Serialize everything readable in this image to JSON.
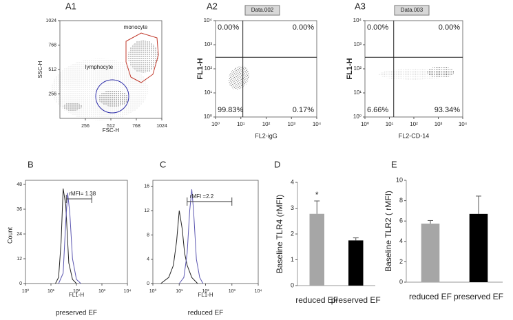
{
  "chart_data": [
    {
      "type": "scatter",
      "panel": "A1",
      "xlabel": "FSC-H",
      "ylabel": "SSC-H",
      "xlim": [
        0,
        1024
      ],
      "ylim": [
        0,
        1024
      ],
      "xticks": [
        256,
        512,
        768,
        1024
      ],
      "yticks": [
        256,
        512,
        768,
        1024
      ],
      "annotations": [
        "monocyte",
        "lymphocyte"
      ]
    },
    {
      "type": "scatter",
      "panel": "A2",
      "tag": "Data.002",
      "xlabel": "FL2-igG",
      "ylabel": "FL1-H",
      "xscale": "log",
      "yscale": "log",
      "xlim": [
        1,
        10000
      ],
      "ylim": [
        1,
        10000
      ],
      "xticks": [
        {
          "value": 1,
          "label": "10⁰"
        },
        {
          "value": 10,
          "label": "10¹"
        },
        {
          "value": 100,
          "label": "10²"
        },
        {
          "value": 1000,
          "label": "10³"
        },
        {
          "value": 10000,
          "label": "10⁴"
        }
      ],
      "yticks": [
        {
          "value": 1,
          "label": "10⁰"
        },
        {
          "value": 10,
          "label": "10¹"
        },
        {
          "value": 100,
          "label": "10²"
        },
        {
          "value": 1000,
          "label": "10³"
        },
        {
          "value": 10000,
          "label": "10⁴"
        }
      ],
      "gate": [
        12,
        300
      ],
      "quadrants": {
        "values": [
          0.0,
          0.0,
          99.83,
          0.17
        ],
        "value_labels": [
          "0.00%",
          "0.00%",
          "99.83%",
          "0.17%"
        ]
      }
    },
    {
      "type": "scatter",
      "panel": "A3",
      "tag": "Data.003",
      "xlabel": "FL2-CD-14",
      "ylabel": "FL1-H",
      "xscale": "log",
      "yscale": "log",
      "xlim": [
        1,
        10000
      ],
      "ylim": [
        1,
        10000
      ],
      "xticks": [
        {
          "value": 1,
          "label": "10⁰"
        },
        {
          "value": 10,
          "label": "10¹"
        },
        {
          "value": 100,
          "label": "10²"
        },
        {
          "value": 1000,
          "label": "10³"
        },
        {
          "value": 10000,
          "label": "10⁴"
        }
      ],
      "yticks": [
        {
          "value": 1,
          "label": "10⁰"
        },
        {
          "value": 10,
          "label": "10¹"
        },
        {
          "value": 100,
          "label": "10²"
        },
        {
          "value": 1000,
          "label": "10³"
        },
        {
          "value": 10000,
          "label": "10⁴"
        }
      ],
      "gate": [
        15,
        300
      ],
      "quadrants": {
        "values": [
          0.0,
          0.0,
          6.66,
          93.34
        ],
        "value_labels": [
          "0.00%",
          "0.00%",
          "6.66%",
          "93.34%"
        ]
      }
    },
    {
      "type": "line",
      "panel": "B",
      "xlabel": "FL1-H",
      "ylabel": "Count",
      "caption": "preserved EF",
      "xscale": "log",
      "xlim": [
        1,
        10000
      ],
      "ylim": [
        0,
        50
      ],
      "xticks": [
        {
          "value": 1,
          "label": "10⁰"
        },
        {
          "value": 10,
          "label": "10¹"
        },
        {
          "value": 100,
          "label": "10²"
        },
        {
          "value": 1000,
          "label": "10³"
        },
        {
          "value": 10000,
          "label": "10⁴"
        }
      ],
      "yticks": [
        0,
        12,
        24,
        36,
        48
      ],
      "marker": {
        "label": "rMFI= 1.38",
        "x": [
          40,
          400
        ],
        "y": 41
      },
      "series": [
        {
          "color": "#222222",
          "x": [
            15,
            20,
            25,
            30,
            38,
            50,
            70,
            100
          ],
          "values": [
            0,
            3,
            20,
            46,
            38,
            10,
            2,
            0
          ]
        },
        {
          "color": "#5a55b0",
          "x": [
            20,
            30,
            38,
            45,
            55,
            70,
            100,
            150
          ],
          "values": [
            0,
            5,
            30,
            44,
            34,
            12,
            2,
            0
          ]
        }
      ]
    },
    {
      "type": "line",
      "panel": "C",
      "xlabel": "FL1-H",
      "caption": "reduced EF",
      "xscale": "log",
      "xlim": [
        1,
        10000
      ],
      "ylim": [
        0,
        17
      ],
      "xticks": [
        {
          "value": 1,
          "label": "10⁰"
        },
        {
          "value": 10,
          "label": "10¹"
        },
        {
          "value": 100,
          "label": "10²"
        },
        {
          "value": 1000,
          "label": "10³"
        },
        {
          "value": 10000,
          "label": "10⁴"
        }
      ],
      "yticks": [
        0,
        4,
        8,
        12,
        16
      ],
      "marker": {
        "label": "rMFI =2.2",
        "x": [
          20,
          1000
        ],
        "y": 13.5
      },
      "series": [
        {
          "color": "#222222",
          "x": [
            2,
            4,
            6,
            8,
            10,
            13,
            16,
            20,
            30,
            50
          ],
          "values": [
            0,
            1,
            3,
            7,
            12,
            9,
            5,
            3,
            1,
            0
          ]
        },
        {
          "color": "#5a55b0",
          "x": [
            10,
            15,
            20,
            25,
            30,
            35,
            45,
            60,
            80
          ],
          "values": [
            0,
            1,
            5,
            12,
            15.5,
            12,
            4,
            1,
            0
          ]
        }
      ]
    },
    {
      "type": "bar",
      "panel": "D",
      "ylabel": "Baseline  TLR4 (rMFI)",
      "categories": [
        "reduced EF",
        "preserved EF"
      ],
      "values": [
        2.78,
        1.75
      ],
      "errors": [
        0.5,
        0.1
      ],
      "colors": [
        "#a6a6a6",
        "#000000"
      ],
      "ylim": [
        0,
        4
      ],
      "yticks": [
        0,
        1,
        2,
        3,
        4
      ],
      "annotations": [
        "*"
      ]
    },
    {
      "type": "bar",
      "panel": "E",
      "ylabel": "Baseline TLR2 ( rMFI)",
      "categories": [
        "reduced EF",
        "preserved EF"
      ],
      "values": [
        5.75,
        6.7
      ],
      "errors": [
        0.3,
        1.75
      ],
      "colors": [
        "#a6a6a6",
        "#000000"
      ],
      "ylim": [
        0,
        10
      ],
      "yticks": [
        0,
        2,
        4,
        6,
        8,
        10
      ]
    }
  ]
}
